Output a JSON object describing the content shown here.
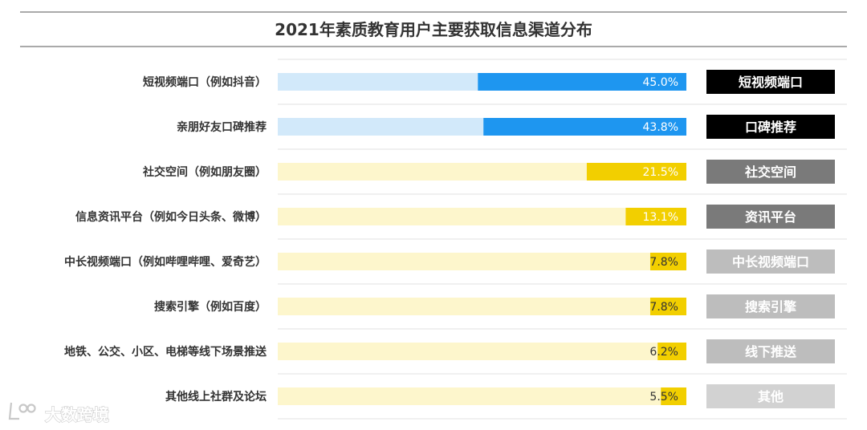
{
  "chart_data": {
    "type": "bar",
    "orientation": "horizontal",
    "title": "2021年素质教育用户主要获取信息渠道分布",
    "categories": [
      "短视频端口（例如抖音）",
      "亲朋好友口碑推荐",
      "社交空间（例如朋友圈）",
      "信息资讯平台（例如今日头条、微博）",
      "中长视频端口（例如哔哩哔哩、爱奇艺）",
      "搜索引擎（例如百度）",
      "地铁、公交、小区、电梯等线下场景推送",
      "其他线上社群及论坛"
    ],
    "values": [
      45.0,
      43.8,
      21.5,
      13.1,
      7.8,
      7.8,
      6.2,
      5.5
    ],
    "value_labels": [
      "45.0%",
      "43.8%",
      "21.5%",
      "13.1%",
      "7.8%",
      "7.8%",
      "6.2%",
      "5.5%"
    ],
    "unit": "%",
    "xlim": [
      0,
      100
    ],
    "tags": [
      "短视频端口",
      "口碑推荐",
      "社交空间",
      "资讯平台",
      "中长视频端口",
      "搜索引擎",
      "线下推送",
      "其他"
    ],
    "colors": {
      "bar_fill": [
        "#1e96f0",
        "#1e96f0",
        "#f2cf00",
        "#f2cf00",
        "#f2cf00",
        "#f2cf00",
        "#f2cf00",
        "#f2cf00"
      ],
      "bar_track": [
        "#d2e9fa",
        "#d2e9fa",
        "#fdf6cc",
        "#fdf6cc",
        "#fdf6cc",
        "#fdf6cc",
        "#fdf6cc",
        "#fdf6cc"
      ],
      "tag_fill": [
        "#000000",
        "#000000",
        "#7a7a7a",
        "#7a7a7a",
        "#bdbdbd",
        "#bdbdbd",
        "#bdbdbd",
        "#d2d2d2"
      ],
      "label_text": "#333333"
    },
    "grid": false,
    "legend": "none"
  },
  "watermark": {
    "text": "大数跨境",
    "icon": "logo-icon"
  }
}
